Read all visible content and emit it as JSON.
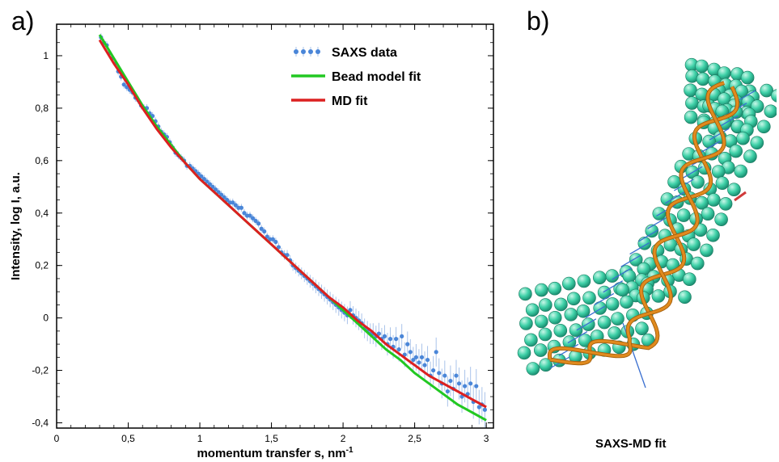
{
  "panels": {
    "a_label": "a)",
    "b_label": "b)",
    "b_caption": "SAXS-MD fit"
  },
  "chart_data": {
    "type": "line",
    "title": "",
    "xlabel": "momentum transfer s, nm",
    "xlabel_superscript": "-1",
    "ylabel": "Intensity, log I, a.u.",
    "xlim": [
      0,
      3.05
    ],
    "ylim": [
      -0.42,
      1.12
    ],
    "x_ticks": [
      0,
      0.5,
      1,
      1.5,
      2,
      2.5,
      3
    ],
    "x_tick_labels": [
      "0",
      "0,5",
      "1",
      "1,5",
      "2",
      "2,5",
      "3"
    ],
    "y_ticks": [
      -0.4,
      -0.2,
      0,
      0.2,
      0.4,
      0.6,
      0.8,
      1
    ],
    "y_tick_labels": [
      "-0,4",
      "-0,2",
      "0",
      "0,2",
      "0,4",
      "0,6",
      "0,8",
      "1"
    ],
    "legend_position": "top-right",
    "grid": false,
    "series": [
      {
        "name": "SAXS data",
        "kind": "scatter",
        "color": "#4a86d8",
        "x": [
          0.31,
          0.33,
          0.35,
          0.37,
          0.39,
          0.41,
          0.43,
          0.45,
          0.47,
          0.49,
          0.51,
          0.53,
          0.55,
          0.57,
          0.59,
          0.61,
          0.63,
          0.65,
          0.67,
          0.69,
          0.71,
          0.73,
          0.75,
          0.77,
          0.79,
          0.81,
          0.83,
          0.85,
          0.87,
          0.89,
          0.91,
          0.93,
          0.95,
          0.97,
          0.99,
          1.01,
          1.03,
          1.05,
          1.07,
          1.09,
          1.11,
          1.13,
          1.15,
          1.17,
          1.19,
          1.21,
          1.23,
          1.25,
          1.27,
          1.29,
          1.31,
          1.33,
          1.35,
          1.37,
          1.39,
          1.41,
          1.43,
          1.45,
          1.47,
          1.49,
          1.51,
          1.53,
          1.55,
          1.57,
          1.59,
          1.61,
          1.63,
          1.65,
          1.67,
          1.69,
          1.71,
          1.73,
          1.75,
          1.77,
          1.79,
          1.81,
          1.83,
          1.85,
          1.87,
          1.89,
          1.91,
          1.93,
          1.95,
          1.97,
          1.99,
          2.01,
          2.03,
          2.05,
          2.07,
          2.09,
          2.11,
          2.13,
          2.15,
          2.17,
          2.19,
          2.21,
          2.23,
          2.25,
          2.27,
          2.29,
          2.31,
          2.33,
          2.35,
          2.37,
          2.39,
          2.41,
          2.43,
          2.45,
          2.47,
          2.49,
          2.51,
          2.53,
          2.55,
          2.57,
          2.59,
          2.61,
          2.63,
          2.65,
          2.67,
          2.69,
          2.71,
          2.73,
          2.75,
          2.77,
          2.79,
          2.81,
          2.83,
          2.85,
          2.87,
          2.89,
          2.91,
          2.93,
          2.95,
          2.97,
          2.99
        ],
        "y": [
          1.07,
          1.05,
          1.04,
          1.01,
          0.99,
          0.97,
          0.94,
          0.92,
          0.89,
          0.88,
          0.87,
          0.86,
          0.84,
          0.83,
          0.81,
          0.8,
          0.8,
          0.78,
          0.77,
          0.75,
          0.73,
          0.71,
          0.7,
          0.69,
          0.67,
          0.65,
          0.63,
          0.62,
          0.61,
          0.6,
          0.58,
          0.58,
          0.57,
          0.56,
          0.55,
          0.54,
          0.53,
          0.52,
          0.51,
          0.5,
          0.49,
          0.48,
          0.47,
          0.46,
          0.45,
          0.44,
          0.44,
          0.43,
          0.42,
          0.42,
          0.4,
          0.39,
          0.39,
          0.38,
          0.37,
          0.36,
          0.34,
          0.33,
          0.31,
          0.3,
          0.3,
          0.29,
          0.27,
          0.25,
          0.24,
          0.24,
          0.22,
          0.2,
          0.19,
          0.18,
          0.17,
          0.16,
          0.15,
          0.14,
          0.13,
          0.12,
          0.11,
          0.1,
          0.09,
          0.08,
          0.07,
          0.06,
          0.05,
          0.04,
          0.03,
          0.02,
          0.01,
          0.03,
          0.01,
          0.0,
          -0.01,
          -0.02,
          -0.04,
          -0.05,
          -0.06,
          -0.06,
          -0.07,
          -0.06,
          -0.08,
          -0.07,
          -0.1,
          -0.08,
          -0.11,
          -0.08,
          -0.12,
          -0.07,
          -0.14,
          -0.1,
          -0.13,
          -0.16,
          -0.15,
          -0.17,
          -0.15,
          -0.18,
          -0.16,
          -0.22,
          -0.2,
          -0.13,
          -0.21,
          -0.25,
          -0.22,
          -0.28,
          -0.24,
          -0.27,
          -0.22,
          -0.25,
          -0.3,
          -0.26,
          -0.29,
          -0.25,
          -0.32,
          -0.26,
          -0.34,
          -0.33,
          -0.35
        ]
      },
      {
        "name": "Bead model fit",
        "kind": "line",
        "color": "#22c822",
        "x": [
          0.3,
          0.4,
          0.5,
          0.6,
          0.7,
          0.8,
          0.9,
          1.0,
          1.1,
          1.2,
          1.3,
          1.4,
          1.5,
          1.6,
          1.7,
          1.8,
          1.9,
          2.0,
          2.1,
          2.2,
          2.3,
          2.4,
          2.5,
          2.6,
          2.7,
          2.8,
          2.9,
          3.0
        ],
        "y": [
          1.08,
          0.99,
          0.9,
          0.81,
          0.73,
          0.66,
          0.59,
          0.53,
          0.48,
          0.43,
          0.38,
          0.33,
          0.28,
          0.23,
          0.18,
          0.13,
          0.08,
          0.03,
          -0.02,
          -0.07,
          -0.12,
          -0.16,
          -0.21,
          -0.25,
          -0.29,
          -0.33,
          -0.36,
          -0.39
        ]
      },
      {
        "name": "MD fit",
        "kind": "line",
        "color": "#dc2020",
        "x": [
          0.3,
          0.4,
          0.5,
          0.6,
          0.7,
          0.8,
          0.9,
          1.0,
          1.1,
          1.2,
          1.3,
          1.4,
          1.5,
          1.6,
          1.7,
          1.8,
          1.9,
          2.0,
          2.1,
          2.2,
          2.3,
          2.4,
          2.5,
          2.6,
          2.7,
          2.8,
          2.9,
          3.0
        ],
        "y": [
          1.06,
          0.97,
          0.89,
          0.8,
          0.72,
          0.65,
          0.59,
          0.53,
          0.48,
          0.43,
          0.38,
          0.33,
          0.28,
          0.23,
          0.18,
          0.13,
          0.08,
          0.04,
          -0.01,
          -0.05,
          -0.1,
          -0.14,
          -0.18,
          -0.22,
          -0.25,
          -0.28,
          -0.31,
          -0.34
        ]
      }
    ]
  },
  "model": {
    "bead_color": "#3fd1a8",
    "backbone_color": "#e08a1e",
    "bond_color": "#3a6fd0",
    "end_color": "#d03a3a"
  }
}
